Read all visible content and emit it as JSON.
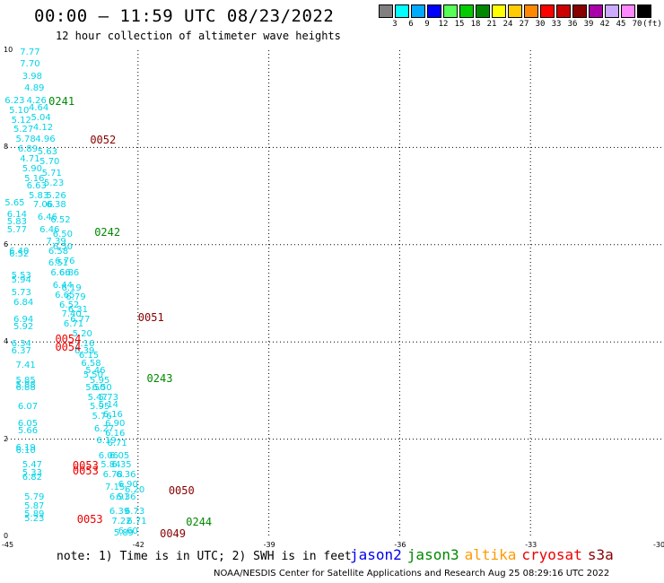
{
  "header": {
    "title": "00:00 – 11:59 UTC 08/23/2022",
    "subtitle": "12 hour collection of altimeter wave heights"
  },
  "color_scale": {
    "unit": "(ft)",
    "steps": [
      {
        "label": "3",
        "color": "#808080"
      },
      {
        "label": "6",
        "color": "#00ffff"
      },
      {
        "label": "9",
        "color": "#00aaff"
      },
      {
        "label": "12",
        "color": "#0000ff"
      },
      {
        "label": "15",
        "color": "#55ff55"
      },
      {
        "label": "18",
        "color": "#00cc00"
      },
      {
        "label": "21",
        "color": "#008800"
      },
      {
        "label": "24",
        "color": "#ffff00"
      },
      {
        "label": "27",
        "color": "#ffcc00"
      },
      {
        "label": "30",
        "color": "#ff8800"
      },
      {
        "label": "33",
        "color": "#ff0000"
      },
      {
        "label": "36",
        "color": "#cc0000"
      },
      {
        "label": "39",
        "color": "#880000"
      },
      {
        "label": "42",
        "color": "#aa00aa"
      },
      {
        "label": "45",
        "color": "#ccaaff"
      },
      {
        "label": "70",
        "color": "#ff88ff"
      },
      {
        "label": "",
        "color": "#000000"
      }
    ]
  },
  "axes": {
    "x_ticks": [
      "-45",
      "-42",
      "-39",
      "-36",
      "-33",
      "-30"
    ],
    "y_ticks": [
      "0",
      "2",
      "4",
      "6",
      "8",
      "10"
    ],
    "lon_range": [
      -45,
      -30
    ],
    "lat_range": [
      0,
      10
    ]
  },
  "series_colors": {
    "value": "#00d4e8",
    "jason3_pass": "#008800",
    "cryosat_pass": "#ee0000",
    "s3a_pass": "#880000"
  },
  "passes": [
    {
      "text": "0241",
      "lon": -44.05,
      "lat": 8.95,
      "series": "jason3_pass"
    },
    {
      "text": "0052",
      "lon": -43.1,
      "lat": 8.15,
      "series": "s3a_pass"
    },
    {
      "text": "0242",
      "lon": -43.0,
      "lat": 6.25,
      "series": "jason3_pass"
    },
    {
      "text": "0051",
      "lon": -42.0,
      "lat": 4.5,
      "series": "s3a_pass"
    },
    {
      "text": "0054",
      "lon": -43.9,
      "lat": 4.05,
      "series": "cryosat_pass"
    },
    {
      "text": "0054",
      "lon": -43.9,
      "lat": 3.9,
      "series": "cryosat_pass"
    },
    {
      "text": "0243",
      "lon": -41.8,
      "lat": 3.25,
      "series": "jason3_pass"
    },
    {
      "text": "0053",
      "lon": -43.5,
      "lat": 1.45,
      "series": "cryosat_pass"
    },
    {
      "text": "0053",
      "lon": -43.5,
      "lat": 1.35,
      "series": "cryosat_pass"
    },
    {
      "text": "0050",
      "lon": -41.3,
      "lat": 0.95,
      "series": "s3a_pass"
    },
    {
      "text": "0053",
      "lon": -43.4,
      "lat": 0.35,
      "series": "cryosat_pass"
    },
    {
      "text": "0244",
      "lon": -40.9,
      "lat": 0.3,
      "series": "jason3_pass"
    },
    {
      "text": "0049",
      "lon": -41.5,
      "lat": 0.05,
      "series": "s3a_pass"
    }
  ],
  "values": [
    {
      "text": "7.77",
      "lon": -44.5,
      "lat": 9.95
    },
    {
      "text": "7.70",
      "lon": -44.5,
      "lat": 9.7
    },
    {
      "text": "3.98",
      "lon": -44.45,
      "lat": 9.45
    },
    {
      "text": "4.89",
      "lon": -44.4,
      "lat": 9.2
    },
    {
      "text": "4.26",
      "lon": -44.35,
      "lat": 8.95
    },
    {
      "text": "6.23",
      "lon": -44.85,
      "lat": 8.95
    },
    {
      "text": "4.64",
      "lon": -44.3,
      "lat": 8.8
    },
    {
      "text": "5.10",
      "lon": -44.75,
      "lat": 8.75
    },
    {
      "text": "5.04",
      "lon": -44.25,
      "lat": 8.6
    },
    {
      "text": "5.12",
      "lon": -44.7,
      "lat": 8.55
    },
    {
      "text": "4.12",
      "lon": -44.2,
      "lat": 8.4
    },
    {
      "text": "5.27",
      "lon": -44.65,
      "lat": 8.35
    },
    {
      "text": "5.78",
      "lon": -44.6,
      "lat": 8.15
    },
    {
      "text": "4.96",
      "lon": -44.15,
      "lat": 8.15
    },
    {
      "text": "6.89",
      "lon": -44.55,
      "lat": 7.95
    },
    {
      "text": "5.63",
      "lon": -44.1,
      "lat": 7.9
    },
    {
      "text": "4.71",
      "lon": -44.5,
      "lat": 7.75
    },
    {
      "text": "5.70",
      "lon": -44.05,
      "lat": 7.7
    },
    {
      "text": "5.90",
      "lon": -44.45,
      "lat": 7.55
    },
    {
      "text": "5.71",
      "lon": -44.0,
      "lat": 7.45
    },
    {
      "text": "5.16",
      "lon": -44.4,
      "lat": 7.35
    },
    {
      "text": "5.23",
      "lon": -43.95,
      "lat": 7.25
    },
    {
      "text": "6.63",
      "lon": -44.35,
      "lat": 7.2
    },
    {
      "text": "5.26",
      "lon": -43.9,
      "lat": 7.0
    },
    {
      "text": "5.83",
      "lon": -44.3,
      "lat": 7.0
    },
    {
      "text": "5.65",
      "lon": -44.85,
      "lat": 6.85
    },
    {
      "text": "7.06",
      "lon": -44.2,
      "lat": 6.8
    },
    {
      "text": "6.38",
      "lon": -43.9,
      "lat": 6.8
    },
    {
      "text": "6.14",
      "lon": -44.8,
      "lat": 6.6
    },
    {
      "text": "6.46",
      "lon": -44.1,
      "lat": 6.55
    },
    {
      "text": "6.52",
      "lon": -43.8,
      "lat": 6.5
    },
    {
      "text": "5.83",
      "lon": -44.8,
      "lat": 6.45
    },
    {
      "text": "5.77",
      "lon": -44.8,
      "lat": 6.3
    },
    {
      "text": "6.46",
      "lon": -44.05,
      "lat": 6.3
    },
    {
      "text": "6.50",
      "lon": -43.75,
      "lat": 6.2
    },
    {
      "text": "7.39",
      "lon": -43.9,
      "lat": 6.05
    },
    {
      "text": "6.50",
      "lon": -43.75,
      "lat": 5.95
    },
    {
      "text": "6.40",
      "lon": -44.75,
      "lat": 5.85
    },
    {
      "text": "6.52",
      "lon": -44.75,
      "lat": 5.8
    },
    {
      "text": "6.58",
      "lon": -43.85,
      "lat": 5.85
    },
    {
      "text": "6.76",
      "lon": -43.7,
      "lat": 5.65
    },
    {
      "text": "6.51",
      "lon": -43.85,
      "lat": 5.6
    },
    {
      "text": "5.53",
      "lon": -44.7,
      "lat": 5.35
    },
    {
      "text": "6.86",
      "lon": -43.6,
      "lat": 5.4
    },
    {
      "text": "6.66",
      "lon": -43.8,
      "lat": 5.4
    },
    {
      "text": "5.94",
      "lon": -44.7,
      "lat": 5.25
    },
    {
      "text": "6.44",
      "lon": -43.75,
      "lat": 5.15
    },
    {
      "text": "6.19",
      "lon": -43.55,
      "lat": 5.1
    },
    {
      "text": "5.73",
      "lon": -44.7,
      "lat": 5.0
    },
    {
      "text": "6.65",
      "lon": -43.7,
      "lat": 4.95
    },
    {
      "text": "6.79",
      "lon": -43.45,
      "lat": 4.9
    },
    {
      "text": "6.84",
      "lon": -44.65,
      "lat": 4.8
    },
    {
      "text": "6.52",
      "lon": -43.6,
      "lat": 4.75
    },
    {
      "text": "6.31",
      "lon": -43.4,
      "lat": 4.65
    },
    {
      "text": "7.40",
      "lon": -43.55,
      "lat": 4.55
    },
    {
      "text": "6.94",
      "lon": -44.65,
      "lat": 4.45
    },
    {
      "text": "6.77",
      "lon": -43.35,
      "lat": 4.45
    },
    {
      "text": "6.71",
      "lon": -43.5,
      "lat": 4.35
    },
    {
      "text": "5.92",
      "lon": -44.65,
      "lat": 4.3
    },
    {
      "text": "5.20",
      "lon": -43.3,
      "lat": 4.15
    },
    {
      "text": "6.34",
      "lon": -44.7,
      "lat": 3.95
    },
    {
      "text": "7.16",
      "lon": -43.25,
      "lat": 3.95
    },
    {
      "text": "6.37",
      "lon": -44.7,
      "lat": 3.8
    },
    {
      "text": "6.39",
      "lon": -43.25,
      "lat": 3.8
    },
    {
      "text": "6.15",
      "lon": -43.15,
      "lat": 3.7
    },
    {
      "text": "7.41",
      "lon": -44.6,
      "lat": 3.5
    },
    {
      "text": "6.58",
      "lon": -43.1,
      "lat": 3.55
    },
    {
      "text": "5.46",
      "lon": -43.0,
      "lat": 3.4
    },
    {
      "text": "5.85",
      "lon": -44.6,
      "lat": 3.2
    },
    {
      "text": "5.50",
      "lon": -43.05,
      "lat": 3.3
    },
    {
      "text": "5.95",
      "lon": -42.9,
      "lat": 3.2
    },
    {
      "text": "5.88",
      "lon": -44.6,
      "lat": 3.1
    },
    {
      "text": "6.88",
      "lon": -44.6,
      "lat": 3.05
    },
    {
      "text": "5.50",
      "lon": -43.0,
      "lat": 3.05
    },
    {
      "text": "6.50",
      "lon": -42.85,
      "lat": 3.05
    },
    {
      "text": "5.47",
      "lon": -42.95,
      "lat": 2.85
    },
    {
      "text": "5.73",
      "lon": -42.7,
      "lat": 2.85
    },
    {
      "text": "6.07",
      "lon": -44.55,
      "lat": 2.65
    },
    {
      "text": "5.95",
      "lon": -42.9,
      "lat": 2.65
    },
    {
      "text": "5.14",
      "lon": -42.7,
      "lat": 2.7
    },
    {
      "text": "6.05",
      "lon": -44.55,
      "lat": 2.3
    },
    {
      "text": "5.76",
      "lon": -42.85,
      "lat": 2.45
    },
    {
      "text": "6.16",
      "lon": -42.6,
      "lat": 2.5
    },
    {
      "text": "5.66",
      "lon": -44.55,
      "lat": 2.15
    },
    {
      "text": "6.90",
      "lon": -42.55,
      "lat": 2.3
    },
    {
      "text": "6.27",
      "lon": -42.8,
      "lat": 2.2
    },
    {
      "text": "6.16",
      "lon": -42.55,
      "lat": 2.1
    },
    {
      "text": "6.19",
      "lon": -44.6,
      "lat": 1.8
    },
    {
      "text": "6.19",
      "lon": -42.75,
      "lat": 1.95
    },
    {
      "text": "6.71",
      "lon": -42.5,
      "lat": 1.9
    },
    {
      "text": "6.10",
      "lon": -44.6,
      "lat": 1.75
    },
    {
      "text": "6.06",
      "lon": -42.7,
      "lat": 1.65
    },
    {
      "text": "6.05",
      "lon": -42.45,
      "lat": 1.65
    },
    {
      "text": "5.47",
      "lon": -44.45,
      "lat": 1.45
    },
    {
      "text": "5.84",
      "lon": -42.65,
      "lat": 1.45
    },
    {
      "text": "6.35",
      "lon": -42.4,
      "lat": 1.45
    },
    {
      "text": "5.33",
      "lon": -44.45,
      "lat": 1.3
    },
    {
      "text": "6.78",
      "lon": -42.6,
      "lat": 1.25
    },
    {
      "text": "6.36",
      "lon": -42.3,
      "lat": 1.25
    },
    {
      "text": "6.82",
      "lon": -44.45,
      "lat": 1.2
    },
    {
      "text": "6.90",
      "lon": -42.25,
      "lat": 1.05
    },
    {
      "text": "7.15",
      "lon": -42.55,
      "lat": 1.0
    },
    {
      "text": "6.20",
      "lon": -42.1,
      "lat": 0.95
    },
    {
      "text": "6.36",
      "lon": -42.3,
      "lat": 0.8
    },
    {
      "text": "5.79",
      "lon": -44.4,
      "lat": 0.8
    },
    {
      "text": "6.91",
      "lon": -42.45,
      "lat": 0.8
    },
    {
      "text": "5.87",
      "lon": -44.4,
      "lat": 0.6
    },
    {
      "text": "6.39",
      "lon": -42.45,
      "lat": 0.5
    },
    {
      "text": "6.73",
      "lon": -42.1,
      "lat": 0.5
    },
    {
      "text": "5.89",
      "lon": -44.4,
      "lat": 0.45
    },
    {
      "text": "5.23",
      "lon": -44.4,
      "lat": 0.35
    },
    {
      "text": "7.22",
      "lon": -42.4,
      "lat": 0.3
    },
    {
      "text": "6.71",
      "lon": -42.05,
      "lat": 0.3
    },
    {
      "text": "6.60",
      "lon": -42.25,
      "lat": 0.1
    },
    {
      "text": "5.89",
      "lon": -42.35,
      "lat": 0.05
    }
  ],
  "note": "note: 1) Time is in UTC; 2) SWH is in feet",
  "legend": [
    {
      "label": "jason2",
      "color": "#0000ee"
    },
    {
      "label": "jason3",
      "color": "#008800"
    },
    {
      "label": "altika",
      "color": "#ff9900"
    },
    {
      "label": "cryosat",
      "color": "#ee0000"
    },
    {
      "label": "s3a",
      "color": "#880000"
    }
  ],
  "footer": "NOAA/NESDIS Center for Satellite Applications and Research    Aug 25 08:29:16 UTC 2022"
}
